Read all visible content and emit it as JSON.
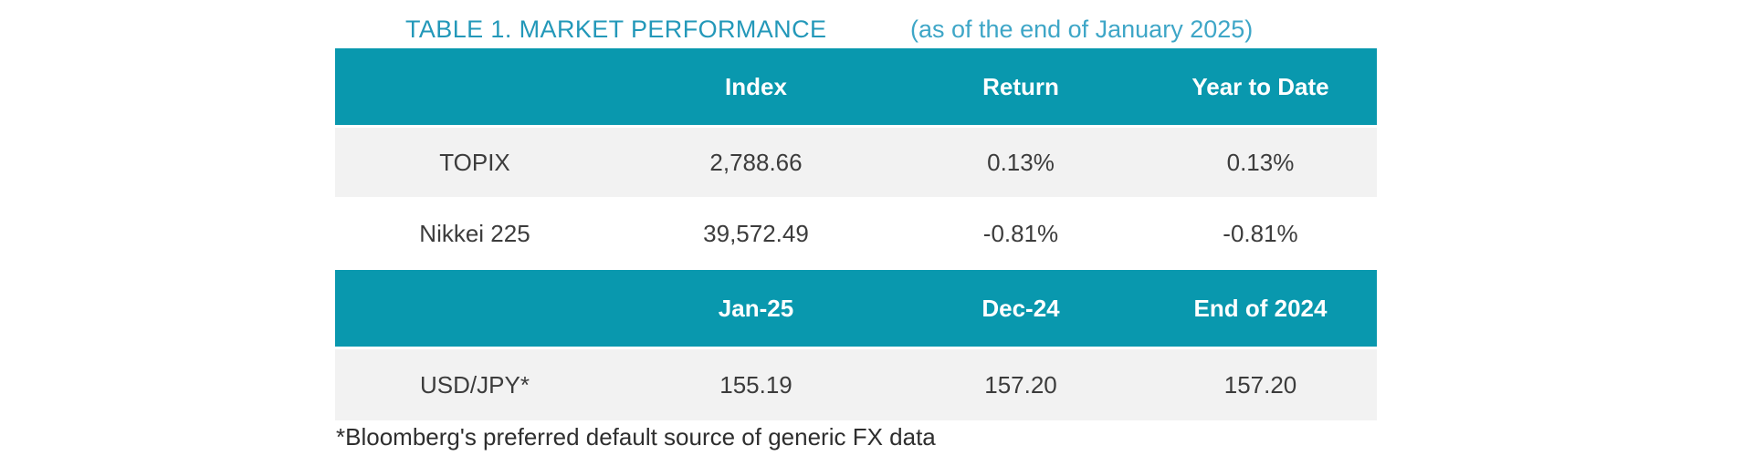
{
  "title": {
    "main": "TABLE 1. MARKET PERFORMANCE",
    "suffix": "(as of the end of January 2025)"
  },
  "chart_data": [
    {
      "type": "table",
      "title": "TABLE 1. MARKET PERFORMANCE (as of the end of January 2025)",
      "columns": [
        "",
        "Index",
        "Return",
        "Year to Date"
      ],
      "rows": [
        [
          "TOPIX",
          "2,788.66",
          "0.13%",
          "0.13%"
        ],
        [
          "Nikkei 225",
          "39,572.49",
          "-0.81%",
          "-0.81%"
        ]
      ]
    },
    {
      "type": "table",
      "columns": [
        "",
        "Jan-25",
        "Dec-24",
        "End of 2024"
      ],
      "rows": [
        [
          "USD/JPY*",
          "155.19",
          "157.20",
          "157.20"
        ]
      ]
    }
  ],
  "footnote": "*Bloomberg's preferred default source of generic FX data",
  "colors": {
    "header_background": "#0998ae",
    "row_stripe": "#f2f2f2",
    "row_white": "#ffffff",
    "title_teal": "#2398b9",
    "subtitle_blue": "#3ea6c7",
    "header_text": "#ffffff",
    "body_text": "#3c3c3c"
  }
}
